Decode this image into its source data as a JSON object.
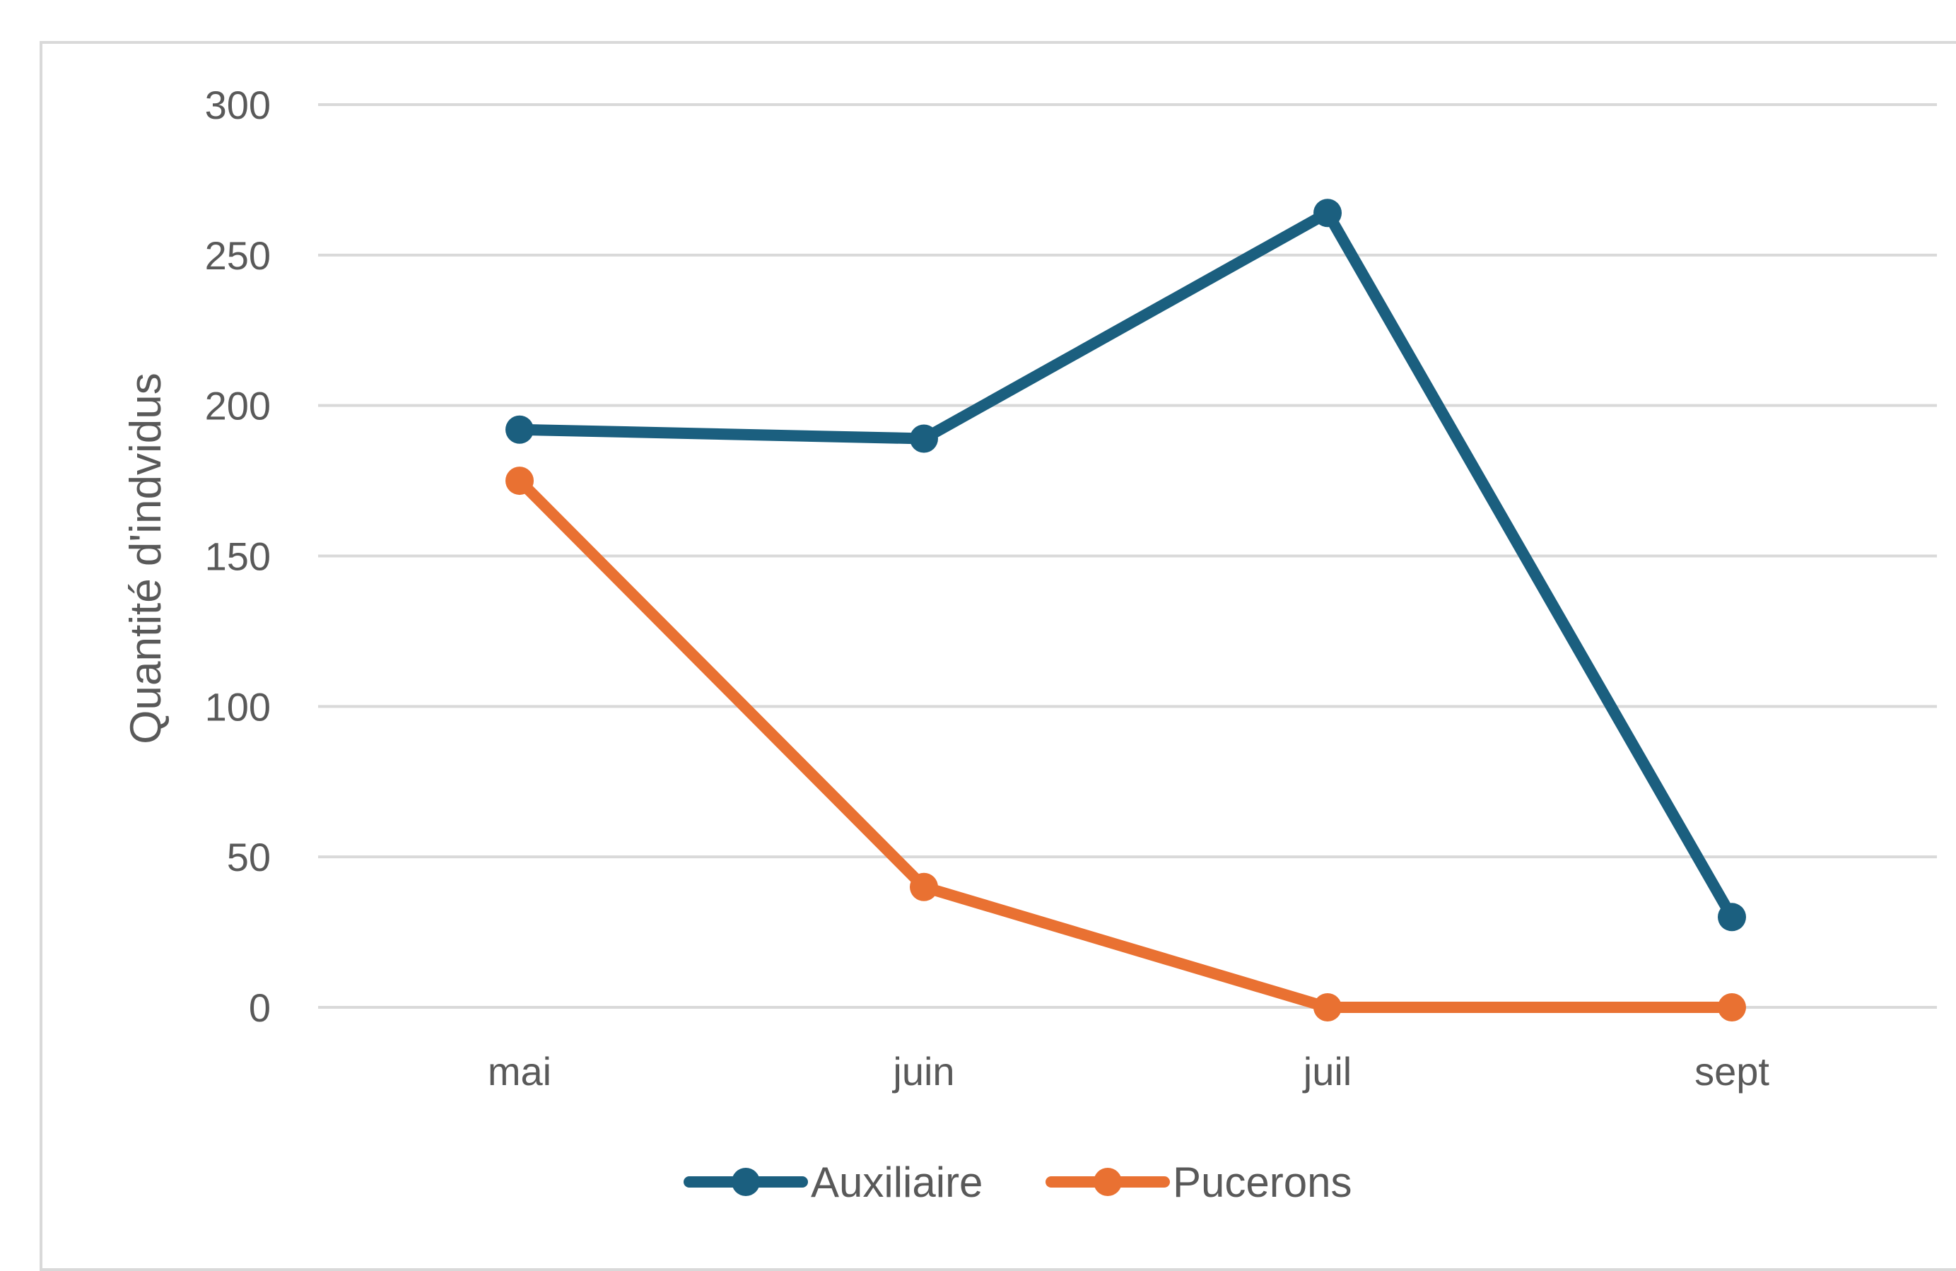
{
  "chart_data": {
    "type": "line",
    "categories": [
      "mai",
      "juin",
      "juil",
      "sept"
    ],
    "series": [
      {
        "name": "Auxiliaire",
        "values": [
          192,
          189,
          264,
          30
        ],
        "color": "#1b5f7f"
      },
      {
        "name": "Pucerons",
        "values": [
          175,
          40,
          0,
          0
        ],
        "color": "#e97132"
      }
    ],
    "title": "",
    "xlabel": "",
    "ylabel": "Quantité d'indvidus",
    "ylim": [
      0,
      300
    ],
    "yticks": [
      0,
      50,
      100,
      150,
      200,
      250,
      300
    ],
    "grid": true,
    "legend_position": "bottom"
  }
}
